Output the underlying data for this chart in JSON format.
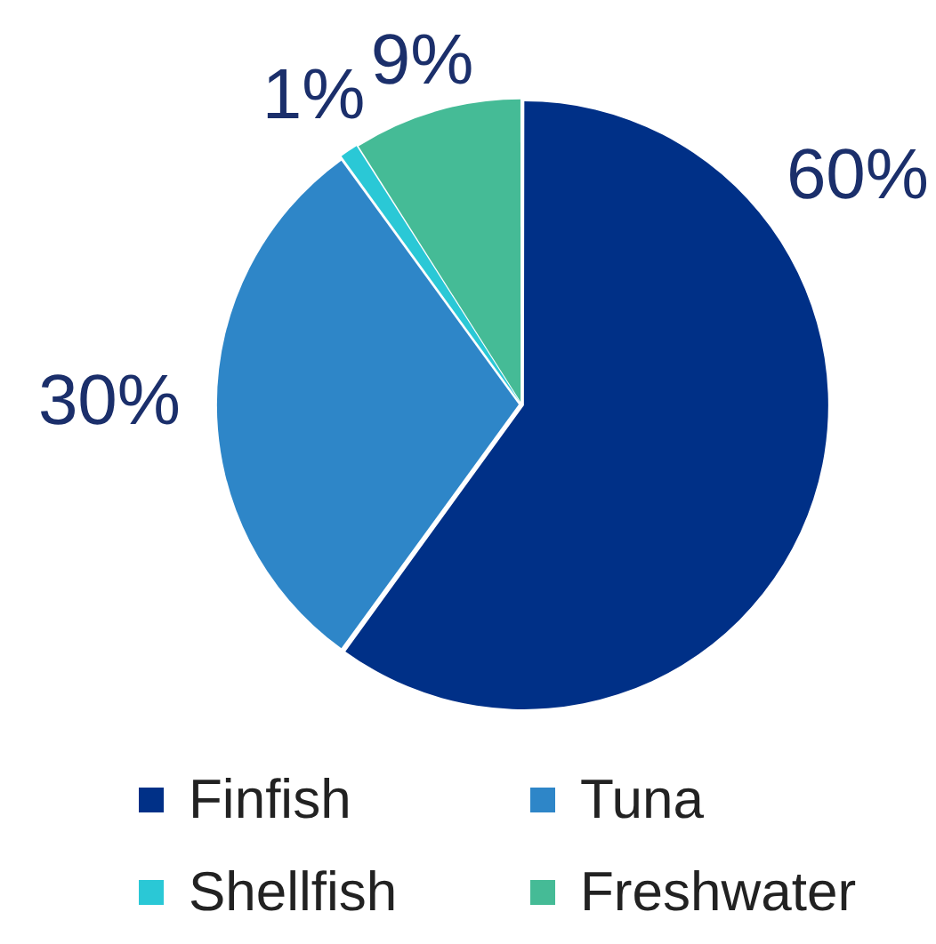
{
  "chart_data": {
    "type": "pie",
    "categories": [
      "Finfish",
      "Tuna",
      "Shellfish",
      "Freshwater"
    ],
    "values": [
      60,
      30,
      1,
      9
    ],
    "colors": [
      "#003087",
      "#2e86c8",
      "#2ac8d6",
      "#45bb96"
    ],
    "value_labels": [
      "60%",
      "30%",
      "1%",
      "9%"
    ],
    "legend": "bottom"
  }
}
